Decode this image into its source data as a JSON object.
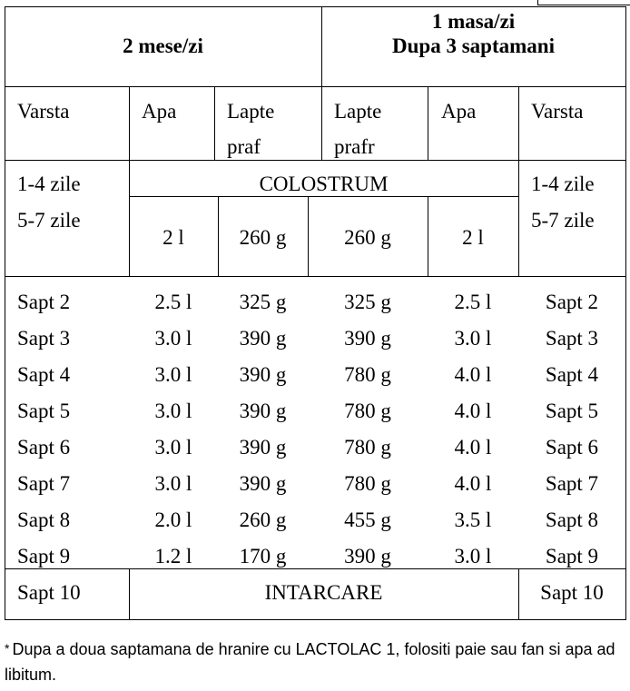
{
  "header": {
    "left_title": "2 mese/zi",
    "right_title_line1": "1 masa/zi",
    "right_title_line2": "Dupa 3 saptamani"
  },
  "columns": {
    "varsta_left": "Varsta",
    "apa_left": "Apa",
    "lapte_left_line1": "Lapte",
    "lapte_left_line2": "praf",
    "lapte_right_line1": "Lapte",
    "lapte_right_line2": "prafr",
    "apa_right": "Apa",
    "varsta_right": "Varsta"
  },
  "first_block": {
    "age_1": "1-4 zile",
    "age_2": "5-7 zile",
    "colostrum": "COLOSTRUM",
    "apa_left": "2 l",
    "lapte_left": "260 g",
    "lapte_right": "260 g",
    "apa_right": "2 l"
  },
  "rows": [
    {
      "age": "Sapt 2",
      "apa_left": "2.5 l",
      "lapte_left": "325 g",
      "lapte_right": "325 g",
      "apa_right": "2.5 l"
    },
    {
      "age": "Sapt 3",
      "apa_left": "3.0 l",
      "lapte_left": "390 g",
      "lapte_right": "390 g",
      "apa_right": "3.0 l"
    },
    {
      "age": "Sapt 4",
      "apa_left": "3.0 l",
      "lapte_left": "390 g",
      "lapte_right": "780 g",
      "apa_right": "4.0 l"
    },
    {
      "age": "Sapt 5",
      "apa_left": "3.0 l",
      "lapte_left": "390 g",
      "lapte_right": "780 g",
      "apa_right": "4.0 l"
    },
    {
      "age": "Sapt 6",
      "apa_left": "3.0 l",
      "lapte_left": "390 g",
      "lapte_right": "780 g",
      "apa_right": "4.0 l"
    },
    {
      "age": "Sapt 7",
      "apa_left": "3.0 l",
      "lapte_left": "390 g",
      "lapte_right": "780 g",
      "apa_right": "4.0 l"
    },
    {
      "age": "Sapt 8",
      "apa_left": "2.0 l",
      "lapte_left": "260 g",
      "lapte_right": "455 g",
      "apa_right": "3.5 l"
    },
    {
      "age": "Sapt 9",
      "apa_left": "1.2 l",
      "lapte_left": "170 g",
      "lapte_right": "390 g",
      "apa_right": "3.0 l"
    }
  ],
  "last_row": {
    "age": "Sapt 10",
    "intarcare": "INTARCARE"
  },
  "footnote": {
    "marker": "*",
    "text": "Dupa a doua saptamana de hranire cu  LACTOLAC 1, folositi paie sau fan si apa ad libitum."
  }
}
